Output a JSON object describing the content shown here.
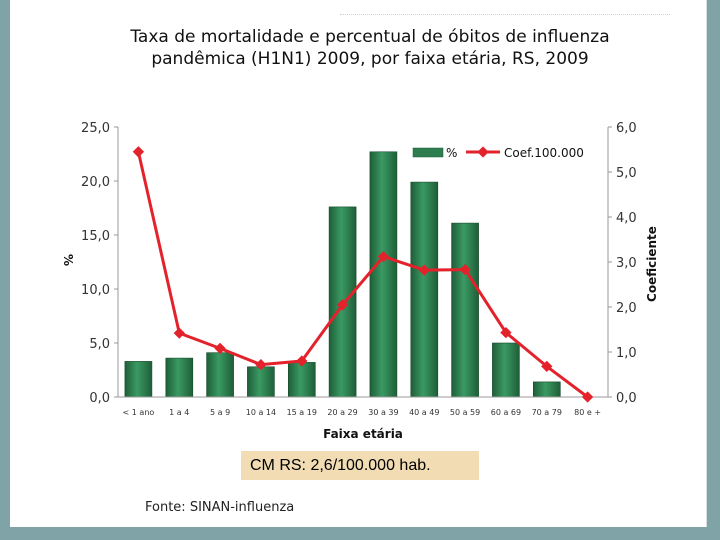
{
  "title_line1": "Taxa de mortalidade  e percentual de óbitos de influenza",
  "title_line2": "pandêmica (H1N1) 2009, por faixa etária, RS, 2009",
  "footnote_box": "CM RS: 2,6/100.000 hab.",
  "source": "Fonte: SINAN-influenza",
  "colors": {
    "bar": "#2e7d4f",
    "line": "#e3222b",
    "background": "#7fa3a6",
    "note_box": "#f2dcb3"
  },
  "chart_data": {
    "type": "bar",
    "categories": [
      "< 1 ano",
      "1 a 4",
      "5 a 9",
      "10 a 14",
      "15 a 19",
      "20 a 29",
      "30 a 39",
      "40 a 49",
      "50 a 59",
      "60 a 69",
      "70 a 79",
      "80 e +"
    ],
    "series": [
      {
        "name": "%",
        "type": "bar",
        "axis": "left",
        "values": [
          3.3,
          3.6,
          4.1,
          2.8,
          3.2,
          17.6,
          22.7,
          19.9,
          16.1,
          5.0,
          1.4,
          0.0
        ]
      },
      {
        "name": "Coef.100.000",
        "type": "line",
        "axis": "right",
        "values": [
          5.45,
          1.42,
          1.08,
          0.72,
          0.8,
          2.05,
          3.12,
          2.82,
          2.83,
          1.43,
          0.68,
          0.0
        ]
      }
    ],
    "xlabel": "Faixa etária",
    "ylabel": "%",
    "y2label": "Coeficiente",
    "ylim": [
      0,
      25
    ],
    "y2lim": [
      0,
      6
    ],
    "yticks": [
      "0,0",
      "5,0",
      "10,0",
      "15,0",
      "20,0",
      "25,0"
    ],
    "y2ticks": [
      "0,0",
      "1,0",
      "2,0",
      "3,0",
      "4,0",
      "5,0",
      "6,0"
    ],
    "grid": false,
    "legend": "top-right"
  }
}
